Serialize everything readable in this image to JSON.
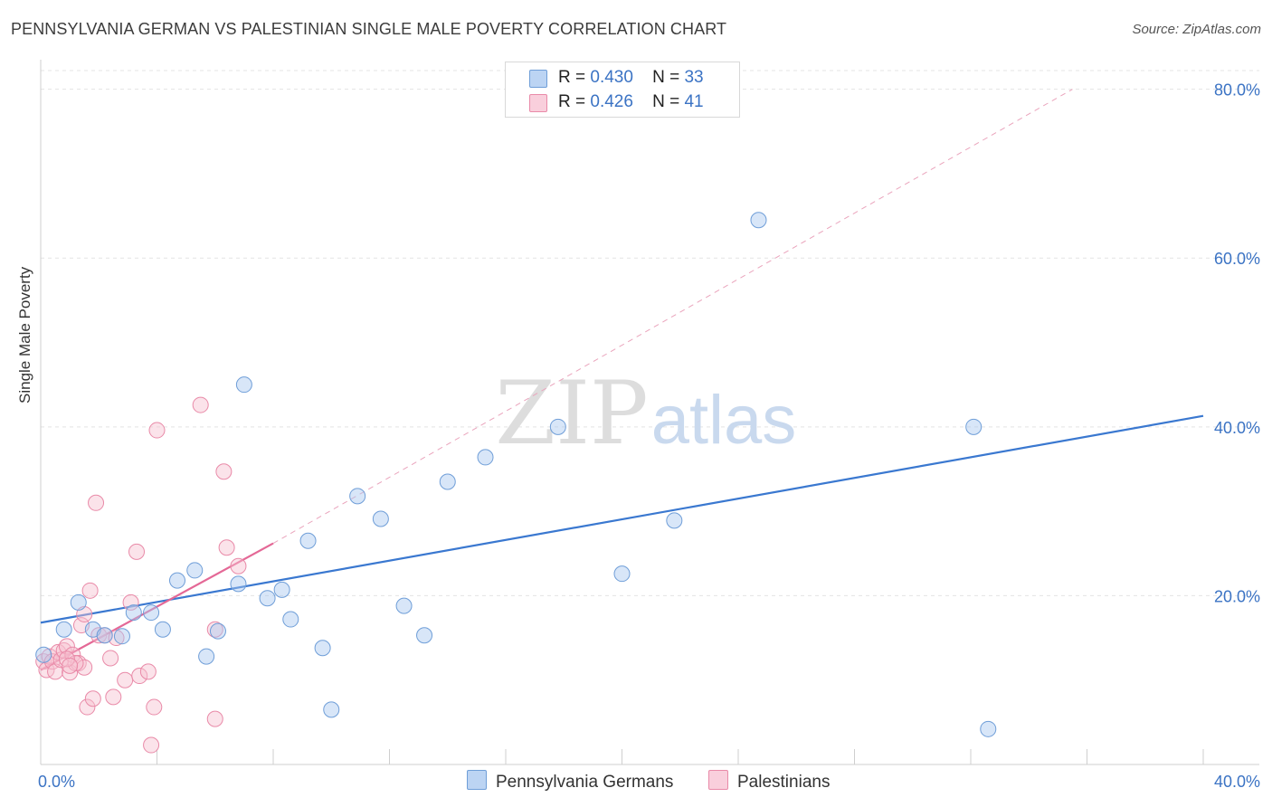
{
  "header": {
    "title": "PENNSYLVANIA GERMAN VS PALESTINIAN SINGLE MALE POVERTY CORRELATION CHART",
    "source": "Source: ZipAtlas.com"
  },
  "watermark": {
    "zip": "ZIP",
    "atlas": "atlas"
  },
  "legend": {
    "r_label": "R =",
    "n_label": "N =",
    "items": [
      {
        "name": "Pennsylvania Germans",
        "r": "0.430",
        "n": "33",
        "color": "#a9c8f0",
        "stroke": "#6f9ed8"
      },
      {
        "name": "Palestinians",
        "r": "0.426",
        "n": "41",
        "color": "#f7c0d0",
        "stroke": "#e98aa8"
      }
    ]
  },
  "chart_data": {
    "type": "scatter",
    "title": "PENNSYLVANIA GERMAN VS PALESTINIAN SINGLE MALE POVERTY CORRELATION CHART",
    "xlabel": "",
    "ylabel": "Single Male Poverty",
    "xlim": [
      0,
      40
    ],
    "ylim": [
      0,
      82
    ],
    "x_tick_labels": [
      "0.0%",
      "40.0%"
    ],
    "y_ticks": [
      20,
      40,
      60,
      80
    ],
    "y_tick_labels": [
      "20.0%",
      "40.0%",
      "60.0%",
      "80.0%"
    ],
    "grid": true,
    "legend_position": "top-center",
    "colors": {
      "pennsylvania": "#3a78d0",
      "palestinian": "#e46896",
      "pennsylvania_fill": "#a9c8f0",
      "palestinian_fill": "#f7c0d0"
    },
    "series": [
      {
        "name": "Pennsylvania Germans",
        "points": [
          [
            0.1,
            13.0
          ],
          [
            0.8,
            16.0
          ],
          [
            1.3,
            19.2
          ],
          [
            1.8,
            16.0
          ],
          [
            2.2,
            15.3
          ],
          [
            2.8,
            15.2
          ],
          [
            3.2,
            18.0
          ],
          [
            3.8,
            18.0
          ],
          [
            4.2,
            16.0
          ],
          [
            4.7,
            21.8
          ],
          [
            5.3,
            23.0
          ],
          [
            5.7,
            12.8
          ],
          [
            6.1,
            15.8
          ],
          [
            6.8,
            21.4
          ],
          [
            7.0,
            45.0
          ],
          [
            7.8,
            19.7
          ],
          [
            8.3,
            20.7
          ],
          [
            8.6,
            17.2
          ],
          [
            9.2,
            26.5
          ],
          [
            9.7,
            13.8
          ],
          [
            10.0,
            6.5
          ],
          [
            10.9,
            31.8
          ],
          [
            11.7,
            29.1
          ],
          [
            12.5,
            18.8
          ],
          [
            13.2,
            15.3
          ],
          [
            14.0,
            33.5
          ],
          [
            15.3,
            36.4
          ],
          [
            17.8,
            40.0
          ],
          [
            20.0,
            22.6
          ],
          [
            21.8,
            28.9
          ],
          [
            24.7,
            64.5
          ],
          [
            32.1,
            40.0
          ],
          [
            32.6,
            4.2
          ]
        ],
        "trend": {
          "x": [
            0,
            40
          ],
          "y": [
            16.8,
            41.3
          ]
        }
      },
      {
        "name": "Palestinians",
        "points": [
          [
            0.1,
            12.2
          ],
          [
            0.2,
            11.2
          ],
          [
            0.3,
            12.8
          ],
          [
            0.4,
            12.2
          ],
          [
            0.5,
            11.0
          ],
          [
            0.6,
            13.3
          ],
          [
            0.7,
            12.4
          ],
          [
            0.8,
            13.5
          ],
          [
            0.9,
            14.0
          ],
          [
            1.0,
            10.9
          ],
          [
            1.1,
            13.0
          ],
          [
            1.3,
            12.0
          ],
          [
            1.4,
            16.5
          ],
          [
            1.5,
            11.5
          ],
          [
            1.5,
            17.8
          ],
          [
            1.6,
            6.8
          ],
          [
            1.7,
            20.6
          ],
          [
            1.8,
            7.8
          ],
          [
            1.9,
            31.0
          ],
          [
            2.0,
            15.3
          ],
          [
            2.2,
            15.3
          ],
          [
            2.4,
            12.6
          ],
          [
            2.5,
            8.0
          ],
          [
            2.9,
            10.0
          ],
          [
            3.1,
            19.2
          ],
          [
            3.3,
            25.2
          ],
          [
            3.4,
            10.5
          ],
          [
            3.7,
            11.0
          ],
          [
            3.8,
            2.3
          ],
          [
            3.9,
            6.8
          ],
          [
            4.0,
            39.6
          ],
          [
            5.5,
            42.6
          ],
          [
            6.0,
            5.4
          ],
          [
            6.0,
            16.0
          ],
          [
            6.3,
            34.7
          ],
          [
            6.4,
            25.7
          ],
          [
            6.8,
            23.5
          ],
          [
            1.2,
            12.0
          ],
          [
            0.9,
            12.5
          ],
          [
            2.6,
            15.0
          ],
          [
            1.0,
            11.7
          ]
        ],
        "trend": {
          "x": [
            0,
            8
          ],
          "y": [
            11.2,
            26.2
          ]
        },
        "trend_extension": {
          "x": [
            8,
            35.5
          ],
          "y": [
            26.2,
            80.0
          ]
        }
      }
    ]
  }
}
